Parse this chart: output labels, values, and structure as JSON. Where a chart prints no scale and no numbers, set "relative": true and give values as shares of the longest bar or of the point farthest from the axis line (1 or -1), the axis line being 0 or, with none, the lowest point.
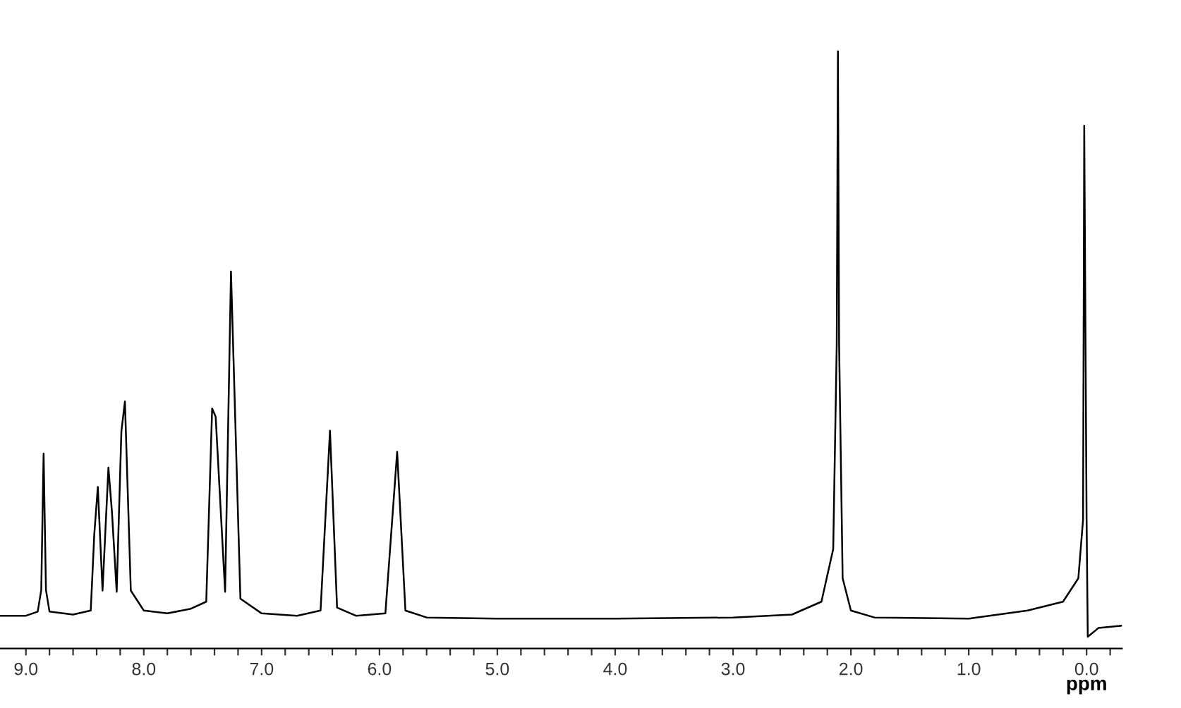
{
  "chart_data": {
    "type": "line",
    "xlabel": "ppm",
    "relative": true,
    "tick_labels": "x",
    "xlim": [
      9.22,
      -0.3
    ],
    "xticks": [
      {
        "value": 9.0,
        "label": "9.0"
      },
      {
        "value": 8.8,
        "label": null
      },
      {
        "value": 8.6,
        "label": null
      },
      {
        "value": 8.4,
        "label": null
      },
      {
        "value": 8.2,
        "label": null
      },
      {
        "value": 8.0,
        "label": "8.0"
      },
      {
        "value": 7.8,
        "label": null
      },
      {
        "value": 7.6,
        "label": null
      },
      {
        "value": 7.4,
        "label": null
      },
      {
        "value": 7.2,
        "label": null
      },
      {
        "value": 7.0,
        "label": "7.0"
      },
      {
        "value": 6.8,
        "label": null
      },
      {
        "value": 6.6,
        "label": null
      },
      {
        "value": 6.4,
        "label": null
      },
      {
        "value": 6.2,
        "label": null
      },
      {
        "value": 6.0,
        "label": "6.0"
      },
      {
        "value": 5.8,
        "label": null
      },
      {
        "value": 5.6,
        "label": null
      },
      {
        "value": 5.4,
        "label": null
      },
      {
        "value": 5.2,
        "label": null
      },
      {
        "value": 5.0,
        "label": "5.0"
      },
      {
        "value": 4.8,
        "label": null
      },
      {
        "value": 4.6,
        "label": null
      },
      {
        "value": 4.4,
        "label": null
      },
      {
        "value": 4.2,
        "label": null
      },
      {
        "value": 4.0,
        "label": "4.0"
      },
      {
        "value": 3.8,
        "label": null
      },
      {
        "value": 3.6,
        "label": null
      },
      {
        "value": 3.4,
        "label": null
      },
      {
        "value": 3.2,
        "label": null
      },
      {
        "value": 3.0,
        "label": "3.0"
      },
      {
        "value": 2.8,
        "label": null
      },
      {
        "value": 2.6,
        "label": null
      },
      {
        "value": 2.4,
        "label": null
      },
      {
        "value": 2.2,
        "label": null
      },
      {
        "value": 2.0,
        "label": "2.0"
      },
      {
        "value": 1.8,
        "label": null
      },
      {
        "value": 1.6,
        "label": null
      },
      {
        "value": 1.4,
        "label": null
      },
      {
        "value": 1.2,
        "label": null
      },
      {
        "value": 1.0,
        "label": "1.0"
      },
      {
        "value": 0.8,
        "label": null
      },
      {
        "value": 0.6,
        "label": null
      },
      {
        "value": 0.4,
        "label": null
      },
      {
        "value": 0.2,
        "label": null
      },
      {
        "value": 0.0,
        "label": "0.0"
      },
      {
        "value": -0.2,
        "label": null
      }
    ],
    "x": [
      9.22,
      9.0,
      8.9,
      8.87,
      8.85,
      8.83,
      8.8,
      8.6,
      8.45,
      8.42,
      8.39,
      8.35,
      8.3,
      8.27,
      8.23,
      8.19,
      8.16,
      8.11,
      8.0,
      7.8,
      7.6,
      7.47,
      7.42,
      7.39,
      7.31,
      7.26,
      7.18,
      7.0,
      6.7,
      6.5,
      6.42,
      6.36,
      6.2,
      5.95,
      5.85,
      5.78,
      5.6,
      5.0,
      4.0,
      3.0,
      2.5,
      2.25,
      2.15,
      2.12,
      2.11,
      2.1,
      2.07,
      2.0,
      1.8,
      1.0,
      0.5,
      0.2,
      0.07,
      0.03,
      0.02,
      0.0,
      -0.01,
      -0.1,
      -0.3
    ],
    "series": [
      {
        "color": "#000000",
        "values": [
          0.036,
          0.036,
          0.043,
          0.08,
          0.313,
          0.08,
          0.043,
          0.038,
          0.045,
          0.175,
          0.256,
          0.079,
          0.289,
          0.213,
          0.077,
          0.351,
          0.402,
          0.079,
          0.045,
          0.04,
          0.048,
          0.06,
          0.39,
          0.376,
          0.077,
          0.624,
          0.065,
          0.04,
          0.036,
          0.045,
          0.352,
          0.05,
          0.036,
          0.04,
          0.316,
          0.045,
          0.033,
          0.031,
          0.031,
          0.033,
          0.038,
          0.06,
          0.15,
          0.5,
          1.0,
          0.5,
          0.1,
          0.045,
          0.033,
          0.031,
          0.045,
          0.06,
          0.1,
          0.2,
          0.873,
          0.2,
          0.0,
          0.015,
          0.019
        ]
      }
    ]
  }
}
